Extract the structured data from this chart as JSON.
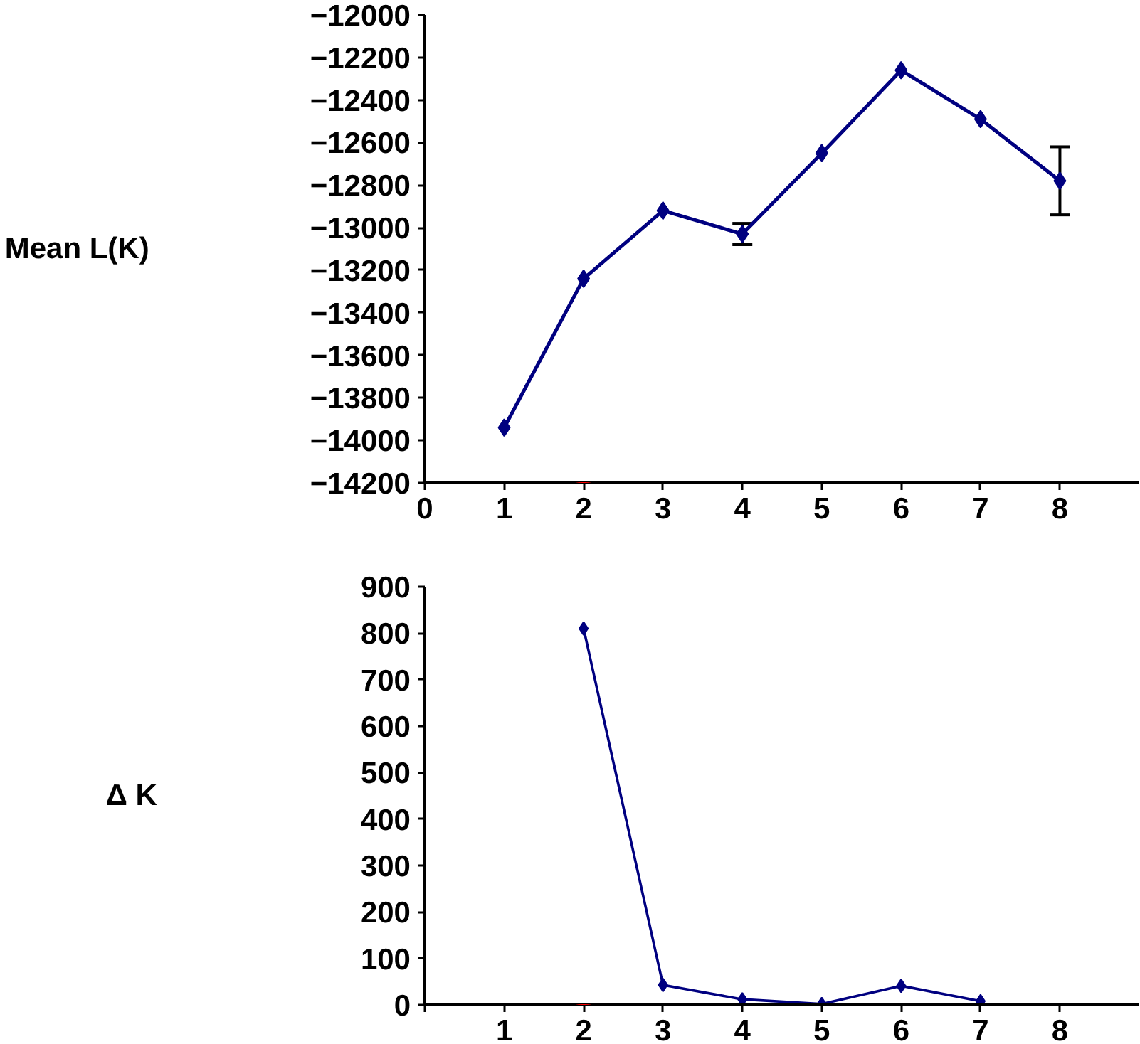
{
  "chart_data": [
    {
      "type": "line",
      "ylabel": "Mean L(K)",
      "x": [
        1,
        2,
        3,
        4,
        5,
        6,
        7,
        8
      ],
      "marker": "diamond",
      "grid": false,
      "line_style": "solid",
      "series": [
        {
          "color": "#000080",
          "values": [
            -13940,
            -13240,
            -12920,
            -13030,
            -12650,
            -12260,
            -12490,
            -12780
          ],
          "errors": [
            null,
            null,
            null,
            50,
            null,
            null,
            null,
            160
          ]
        }
      ],
      "xlim": [
        0,
        9
      ],
      "xticks": [
        0,
        1,
        2,
        3,
        4,
        5,
        6,
        7,
        8
      ],
      "ylim": [
        -14200,
        -12000
      ],
      "yticks": [
        -14200,
        -14000,
        -13800,
        -13600,
        -13400,
        -13200,
        -13000,
        -12800,
        -12600,
        -12400,
        -12200,
        -12000
      ]
    },
    {
      "type": "line",
      "ylabel": "Δ K",
      "x": [
        2,
        3,
        4,
        5,
        6,
        7
      ],
      "marker": "diamond",
      "grid": false,
      "line_style": "solid",
      "series": [
        {
          "color": "#000080",
          "values": [
            810,
            43,
            12,
            2,
            41,
            8
          ]
        }
      ],
      "xlim": [
        0,
        9
      ],
      "xticks": [
        {
          "value": 0,
          "label": null
        },
        1,
        2,
        3,
        4,
        5,
        6,
        7,
        8
      ],
      "ylim": [
        0,
        900
      ],
      "yticks": [
        0,
        100,
        200,
        300,
        400,
        500,
        600,
        700,
        800,
        900
      ]
    }
  ]
}
